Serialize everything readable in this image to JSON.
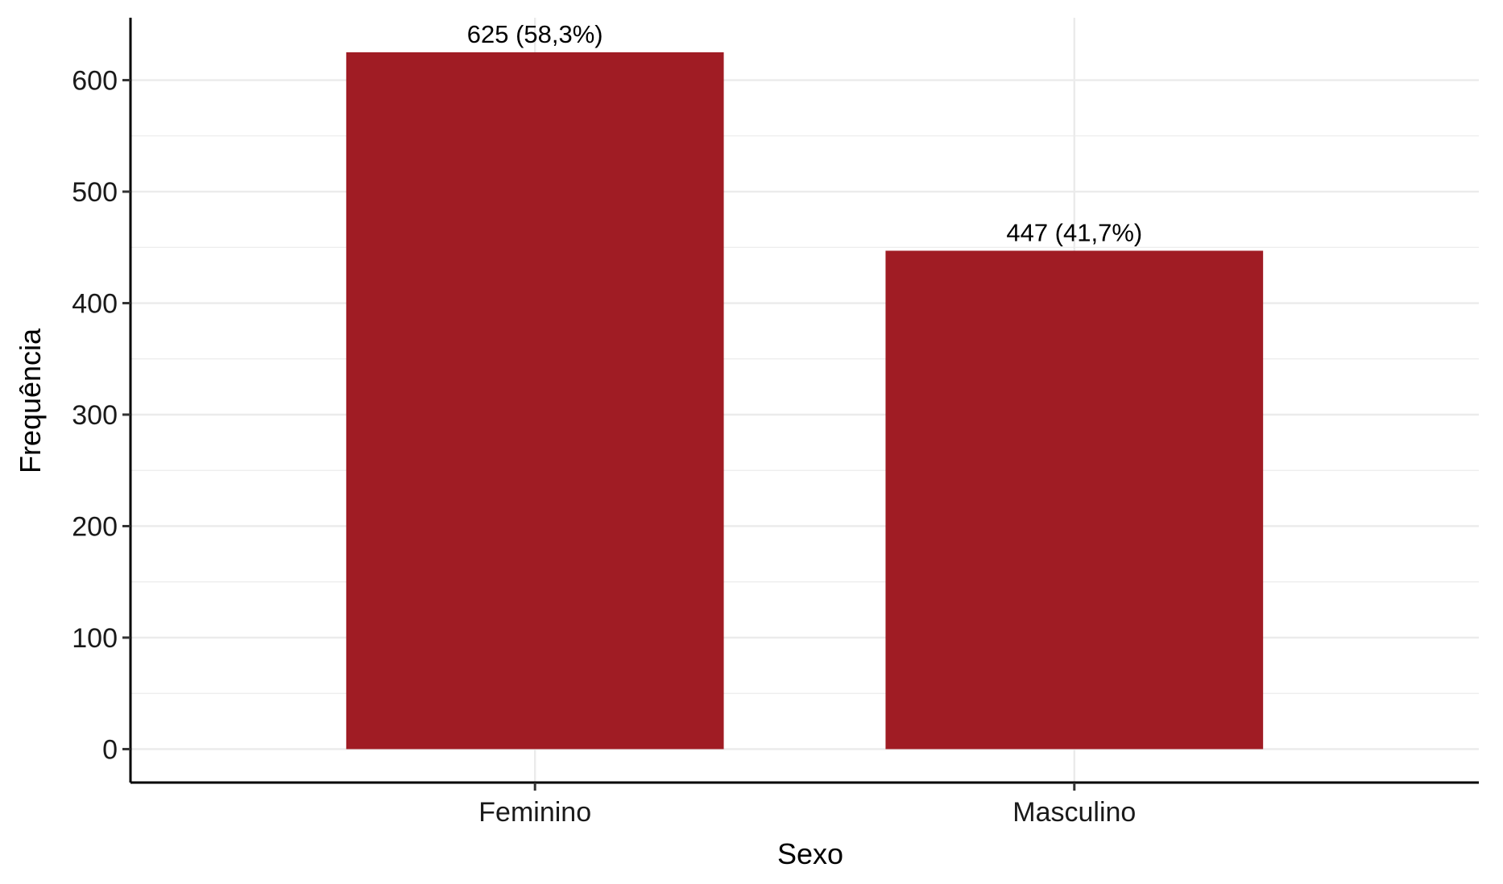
{
  "chart_data": {
    "type": "bar",
    "categories": [
      "Feminino",
      "Masculino"
    ],
    "values": [
      625,
      447
    ],
    "data_labels": [
      "625 (58,3%)",
      "447 (41,7%)"
    ],
    "title": "",
    "xlabel": "Sexo",
    "ylabel": "Frequência",
    "ylim": [
      -30,
      656
    ],
    "yticks": [
      0,
      100,
      200,
      300,
      400,
      500,
      600
    ],
    "ytick_labels": [
      "0",
      "100",
      "200",
      "300",
      "400",
      "500",
      "600"
    ],
    "grid": true,
    "legend": "none",
    "bar_color": "#A01C24"
  }
}
